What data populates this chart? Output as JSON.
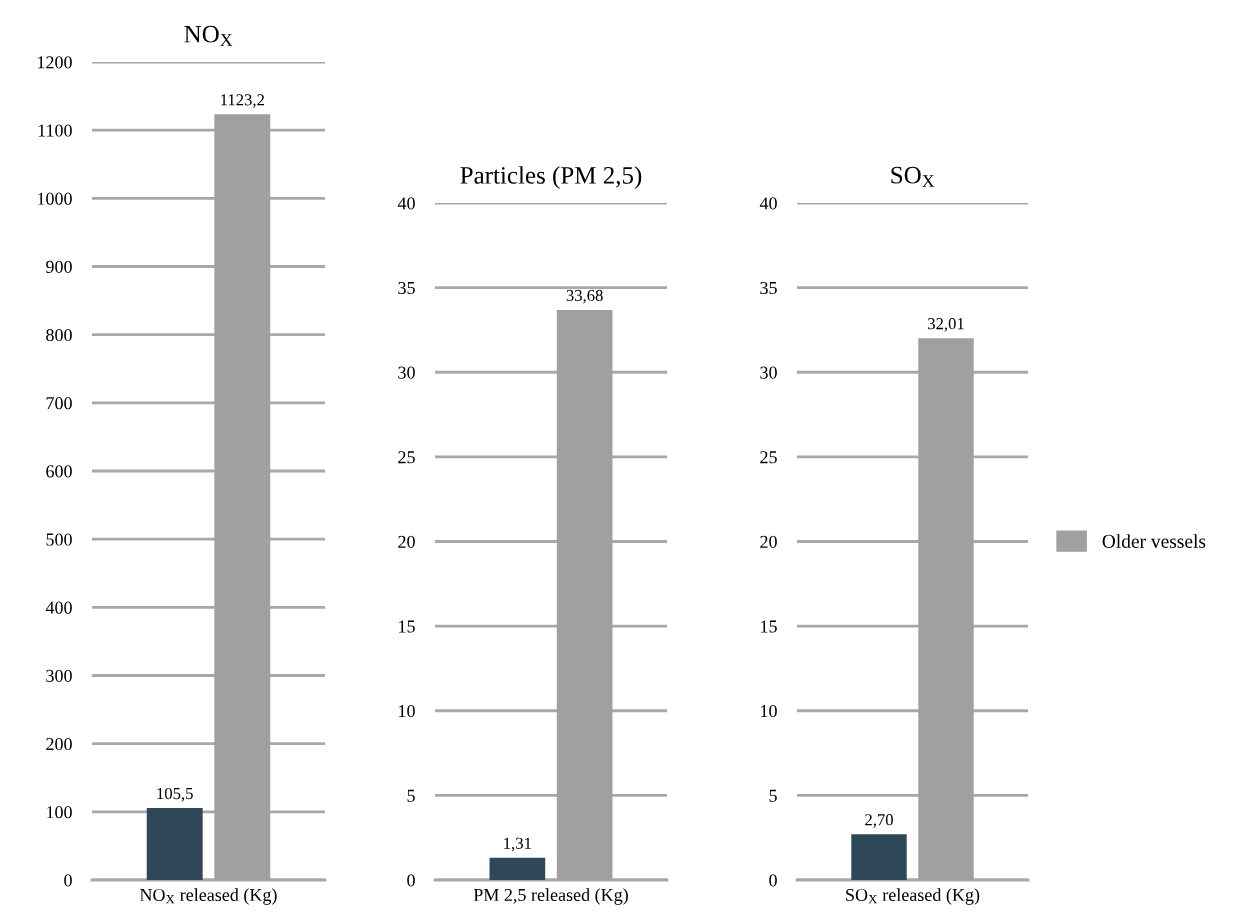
{
  "chart_data": [
    {
      "type": "bar",
      "title": "NO$_{X}$",
      "xlabel": "NO$_{X}$ released (Kg)",
      "categories": [
        null
      ],
      "series": [
        {
          "color": "#2f4858",
          "values": [
            105.5
          ],
          "value_labels": [
            "105,5"
          ]
        },
        {
          "color": "#a0a0a0",
          "values": [
            1123.2
          ],
          "value_labels": [
            "1123,2"
          ]
        }
      ],
      "ylim": [
        0,
        1200
      ],
      "yticks": [
        0,
        100,
        200,
        300,
        400,
        500,
        600,
        700,
        800,
        900,
        1000,
        1100,
        1200
      ],
      "grid": "y"
    },
    {
      "type": "bar",
      "title": "Particles (PM 2,5)",
      "xlabel": "PM 2,5 released (Kg)",
      "categories": [
        null
      ],
      "series": [
        {
          "color": "#2f4858",
          "values": [
            1.31
          ],
          "value_labels": [
            "1,31"
          ]
        },
        {
          "color": "#a0a0a0",
          "values": [
            33.68
          ],
          "value_labels": [
            "33,68"
          ]
        }
      ],
      "ylim": [
        0,
        40
      ],
      "yticks": [
        0,
        5,
        10,
        15,
        20,
        25,
        30,
        35,
        40
      ],
      "grid": "y"
    },
    {
      "type": "bar",
      "title": "SO$_{X}$",
      "xlabel": "SO$_{X}$ released (Kg)",
      "categories": [
        null
      ],
      "series": [
        {
          "color": "#2f4858",
          "values": [
            2.7
          ],
          "value_labels": [
            "2,70"
          ]
        },
        {
          "name": "Older vessels",
          "color": "#a0a0a0",
          "values": [
            32.01
          ],
          "value_labels": [
            "32,01"
          ]
        }
      ],
      "ylim": [
        0,
        40
      ],
      "yticks": [
        0,
        5,
        10,
        15,
        20,
        25,
        30,
        35,
        40
      ],
      "grid": "y",
      "legend": "right"
    }
  ]
}
